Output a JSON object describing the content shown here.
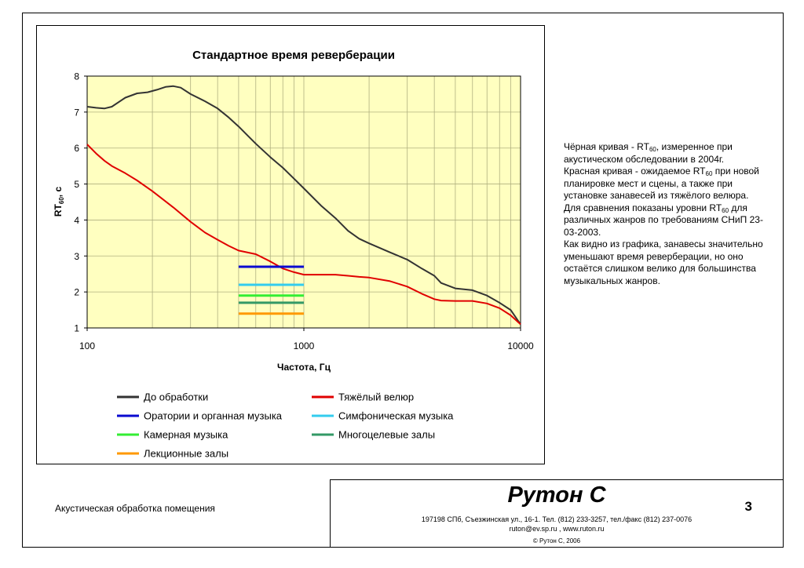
{
  "chart_data": {
    "type": "line",
    "title": "Стандартное время реверберации",
    "xlabel": "Частота, Гц",
    "ylabel": "RT",
    "ylabel_sub": "60",
    "ylabel_unit": ", с",
    "xscale": "log",
    "xlim": [
      100,
      10000
    ],
    "ylim": [
      1,
      8
    ],
    "x_ticks": [
      "100",
      "1000",
      "10000"
    ],
    "y_ticks": [
      "1",
      "2",
      "3",
      "4",
      "5",
      "6",
      "7",
      "8"
    ],
    "grid": true,
    "plot_background": "#ffffc0",
    "legend_position": "bottom",
    "series": [
      {
        "name": "До обработки",
        "color": "#333333",
        "x": [
          100,
          110,
          120,
          130,
          150,
          170,
          190,
          210,
          230,
          250,
          270,
          300,
          350,
          400,
          450,
          500,
          550,
          600,
          700,
          800,
          900,
          1000,
          1200,
          1400,
          1600,
          1800,
          2000,
          2500,
          3000,
          3500,
          4000,
          4300,
          5000,
          6000,
          7000,
          8000,
          9000,
          10000
        ],
        "y": [
          7.15,
          7.12,
          7.1,
          7.15,
          7.4,
          7.52,
          7.55,
          7.62,
          7.7,
          7.72,
          7.68,
          7.5,
          7.3,
          7.1,
          6.85,
          6.6,
          6.35,
          6.12,
          5.75,
          5.45,
          5.15,
          4.88,
          4.4,
          4.05,
          3.7,
          3.48,
          3.35,
          3.1,
          2.9,
          2.65,
          2.45,
          2.25,
          2.1,
          2.05,
          1.9,
          1.7,
          1.5,
          1.1
        ]
      },
      {
        "name": "Тяжёлый велюр",
        "color": "#e00000",
        "x": [
          100,
          110,
          120,
          130,
          150,
          170,
          200,
          250,
          300,
          350,
          400,
          450,
          500,
          600,
          700,
          800,
          900,
          1000,
          1200,
          1400,
          1600,
          1800,
          2000,
          2500,
          3000,
          3500,
          4000,
          4300,
          5000,
          6000,
          7000,
          8000,
          9000,
          10000
        ],
        "y": [
          6.1,
          5.85,
          5.65,
          5.5,
          5.3,
          5.1,
          4.8,
          4.35,
          3.95,
          3.65,
          3.45,
          3.28,
          3.15,
          3.05,
          2.85,
          2.65,
          2.55,
          2.48,
          2.48,
          2.48,
          2.45,
          2.42,
          2.4,
          2.3,
          2.15,
          1.95,
          1.8,
          1.76,
          1.75,
          1.75,
          1.68,
          1.55,
          1.35,
          1.1
        ]
      },
      {
        "name": "Оратории и органная музыка",
        "color": "#0a0ad0",
        "x": [
          500,
          1000
        ],
        "y": [
          2.7,
          2.7
        ]
      },
      {
        "name": "Симфоническая музыка",
        "color": "#33ccee",
        "x": [
          500,
          1000
        ],
        "y": [
          2.2,
          2.2
        ]
      },
      {
        "name": "Камерная музыка",
        "color": "#33ee33",
        "x": [
          500,
          1000
        ],
        "y": [
          1.9,
          1.9
        ]
      },
      {
        "name": "Многоцелевые залы",
        "color": "#339966",
        "x": [
          500,
          1000
        ],
        "y": [
          1.7,
          1.7
        ]
      },
      {
        "name": "Лекционные залы",
        "color": "#ff9900",
        "x": [
          500,
          1000
        ],
        "y": [
          1.4,
          1.4
        ]
      }
    ]
  },
  "side_text": {
    "p1_pre": "Чёрная кривая - RT",
    "p1_sub": "60",
    "p1_post": ", измеренное при акустическом обследовании в 2004г.",
    "p2_pre": "Красная кривая - ожидаемое RT",
    "p2_sub": "60",
    "p2_post": " при новой планировке мест и сцены, а также при установке занавесей из тяжёлого велюра.",
    "p3_pre": "Для сравнения показаны уровни RT",
    "p3_sub": "60",
    "p3_post": " для различных жанров по требованиям СНиП 23-03-2003.",
    "p4": "Как видно из графика, занавесы значительно уменьшают время реверберации, но оно остаётся слишком велико для большинства музыкальных жанров."
  },
  "footer": {
    "left_text": "Акустическая обработка помещения",
    "company": "Рутон С",
    "page_number": "3",
    "address": "197198 СПб, Съезжинская ул., 16-1. Тел. (812) 233-3257, тел./факс (812) 237-0076",
    "contacts": "ruton@ev.sp.ru ,  www.ruton.ru",
    "copyright": "© Рутон С, 2006"
  }
}
